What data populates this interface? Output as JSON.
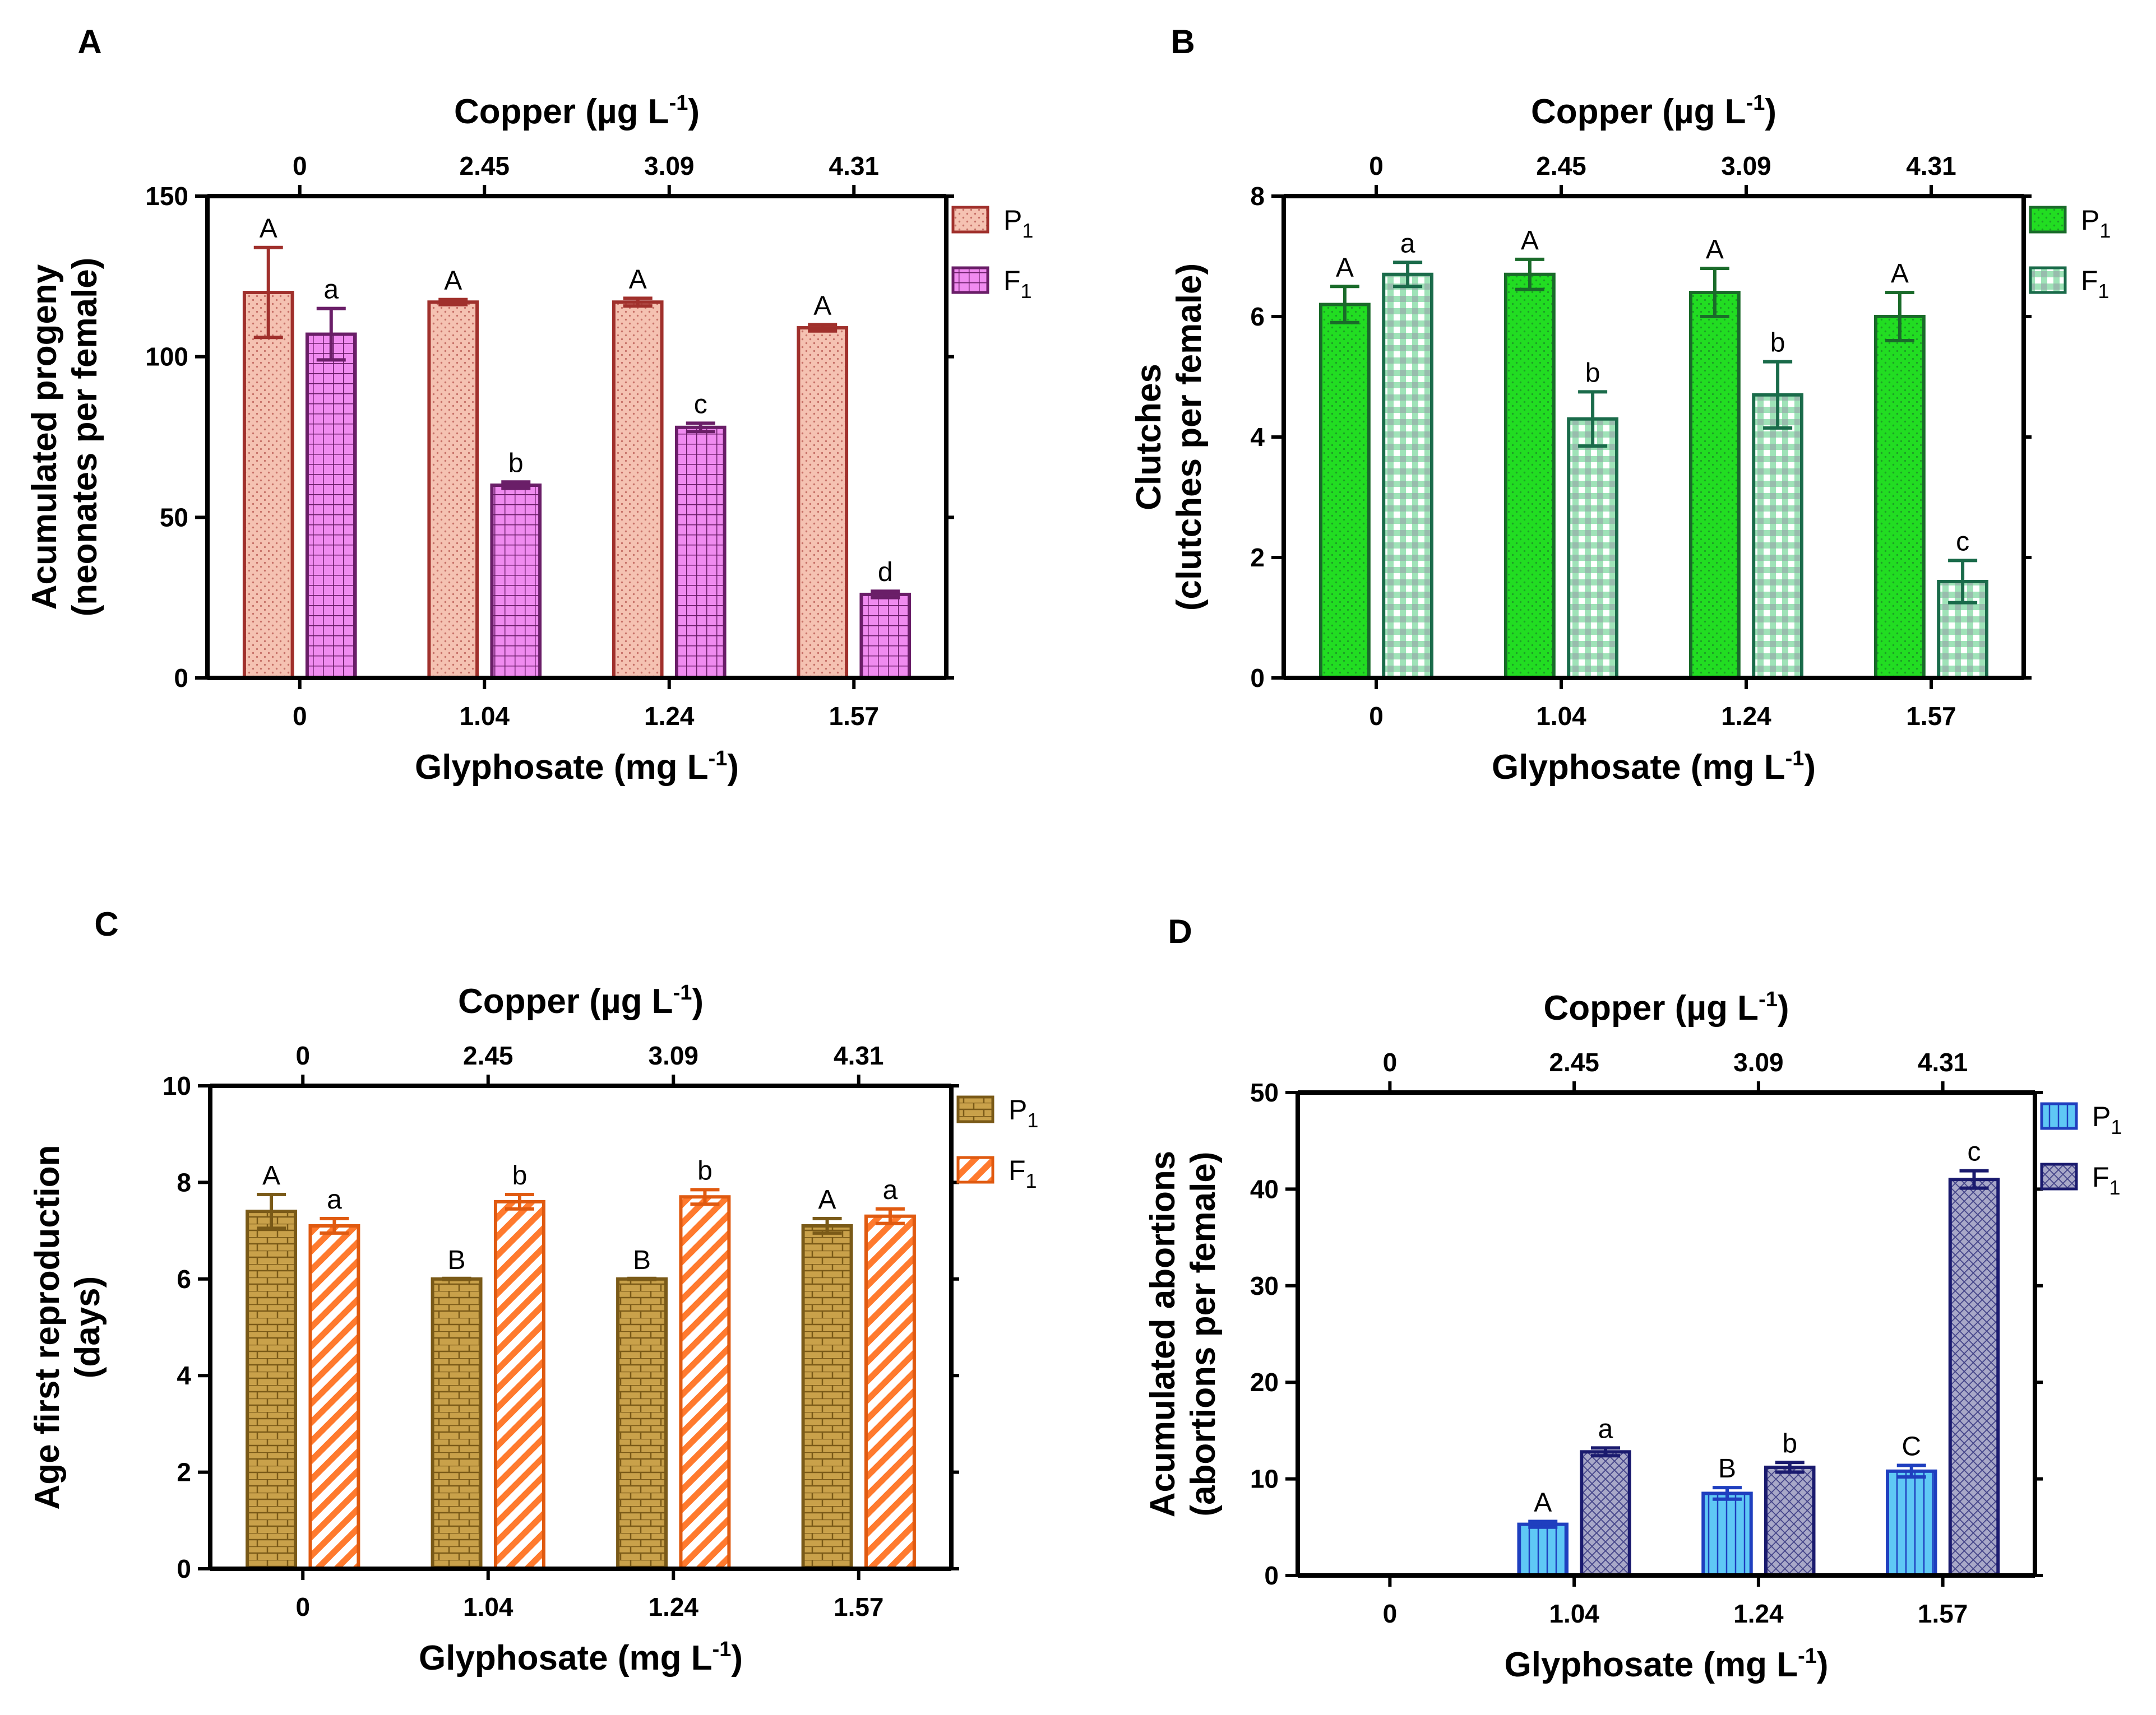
{
  "chart_data": [
    {
      "panel": "A",
      "type": "bar",
      "top_axis_title": "Copper (µg L",
      "top_axis_sup": "-1",
      "top_axis_close": ")",
      "top_categories": [
        "0",
        "2.45",
        "3.09",
        "4.31"
      ],
      "xlabel": "Glyphosate (mg L",
      "xlabel_sup": "-1",
      "xlabel_close": ")",
      "categories": [
        "0",
        "1.04",
        "1.24",
        "1.57"
      ],
      "ylabel_line1": "Acumulated progeny",
      "ylabel_line2": "(neonates per female)",
      "ylim": [
        0,
        150
      ],
      "yticks": [
        0,
        50,
        100,
        150
      ],
      "series": [
        {
          "name": "P",
          "sub": "1",
          "fill": "#f5c2b2",
          "stroke": "#a0302c",
          "pattern": "dots",
          "values": [
            120,
            117,
            117,
            109
          ],
          "errors": [
            14,
            0.8,
            1.2,
            1.0
          ],
          "labels": [
            "A",
            "A",
            "A",
            "A"
          ]
        },
        {
          "name": "F",
          "sub": "1",
          "fill": "#f08bf0",
          "stroke": "#6a1e68",
          "pattern": "grid",
          "values": [
            107,
            60,
            78,
            26
          ],
          "errors": [
            8,
            1.0,
            1.3,
            1.0
          ],
          "labels": [
            "a",
            "b",
            "c",
            "d"
          ]
        }
      ]
    },
    {
      "panel": "B",
      "type": "bar",
      "top_axis_title": "Copper (µg L",
      "top_axis_sup": "-1",
      "top_axis_close": ")",
      "top_categories": [
        "0",
        "2.45",
        "3.09",
        "4.31"
      ],
      "xlabel": "Glyphosate (mg L",
      "xlabel_sup": "-1",
      "xlabel_close": ")",
      "categories": [
        "0",
        "1.04",
        "1.24",
        "1.57"
      ],
      "ylabel_line1": "Clutches",
      "ylabel_line2": "(clutches per female)",
      "ylim": [
        0,
        8
      ],
      "yticks": [
        0,
        2,
        4,
        6,
        8
      ],
      "series": [
        {
          "name": "P",
          "sub": "1",
          "fill": "#22dd22",
          "stroke": "#1a6b2a",
          "pattern": "dots",
          "values": [
            6.2,
            6.7,
            6.4,
            6.0
          ],
          "errors": [
            0.3,
            0.25,
            0.4,
            0.4
          ],
          "labels": [
            "A",
            "A",
            "A",
            "A"
          ]
        },
        {
          "name": "F",
          "sub": "1",
          "fill": "#9fe3b8",
          "stroke": "#1a6b4a",
          "pattern": "checker",
          "values": [
            6.7,
            4.3,
            4.7,
            1.6
          ],
          "errors": [
            0.2,
            0.45,
            0.55,
            0.35
          ],
          "labels": [
            "a",
            "b",
            "b",
            "c"
          ]
        }
      ]
    },
    {
      "panel": "C",
      "type": "bar",
      "top_axis_title": "Copper (µg L",
      "top_axis_sup": "-1",
      "top_axis_close": ")",
      "top_categories": [
        "0",
        "2.45",
        "3.09",
        "4.31"
      ],
      "xlabel": "Glyphosate (mg L",
      "xlabel_sup": "-1",
      "xlabel_close": ")",
      "categories": [
        "0",
        "1.04",
        "1.24",
        "1.57"
      ],
      "ylabel_line1": "Age first reproduction",
      "ylabel_line2": "(days)",
      "ylim": [
        0,
        10
      ],
      "yticks": [
        0,
        2,
        4,
        6,
        8,
        10
      ],
      "series": [
        {
          "name": "P",
          "sub": "1",
          "fill": "#c9a14a",
          "stroke": "#7a5a18",
          "pattern": "brick",
          "values": [
            7.4,
            6.0,
            6.0,
            7.1
          ],
          "errors": [
            0.35,
            0.0,
            0.0,
            0.15
          ],
          "labels": [
            "A",
            "B",
            "B",
            "A"
          ]
        },
        {
          "name": "F",
          "sub": "1",
          "fill": "#ff7a2e",
          "stroke": "#e05a10",
          "pattern": "diagonal",
          "values": [
            7.1,
            7.6,
            7.7,
            7.3
          ],
          "errors": [
            0.15,
            0.15,
            0.15,
            0.15
          ],
          "labels": [
            "a",
            "b",
            "b",
            "a"
          ]
        }
      ]
    },
    {
      "panel": "D",
      "type": "bar",
      "top_axis_title": "Copper (µg L",
      "top_axis_sup": "-1",
      "top_axis_close": ")",
      "top_categories": [
        "0",
        "2.45",
        "3.09",
        "4.31"
      ],
      "xlabel": "Glyphosate (mg L",
      "xlabel_sup": "-1",
      "xlabel_close": ")",
      "categories": [
        "0",
        "1.04",
        "1.24",
        "1.57"
      ],
      "ylabel_line1": "Acumulated abortions",
      "ylabel_line2": "(abortions per female)",
      "ylim": [
        0,
        50
      ],
      "yticks": [
        0,
        10,
        20,
        30,
        40,
        50
      ],
      "series": [
        {
          "name": "P",
          "sub": "1",
          "fill": "#5fc8f5",
          "stroke": "#1f3fbf",
          "pattern": "vertical",
          "values": [
            0,
            5.3,
            8.5,
            10.8
          ],
          "errors": [
            0,
            0.3,
            0.6,
            0.6
          ],
          "labels": [
            "",
            "A",
            "B",
            "C"
          ]
        },
        {
          "name": "F",
          "sub": "1",
          "fill": "#a8a8c8",
          "stroke": "#1a1a6e",
          "pattern": "crosshatch",
          "values": [
            0,
            12.8,
            11.2,
            41.0
          ],
          "errors": [
            0,
            0.4,
            0.5,
            0.9
          ],
          "labels": [
            "",
            "a",
            "b",
            "c"
          ]
        }
      ]
    }
  ]
}
